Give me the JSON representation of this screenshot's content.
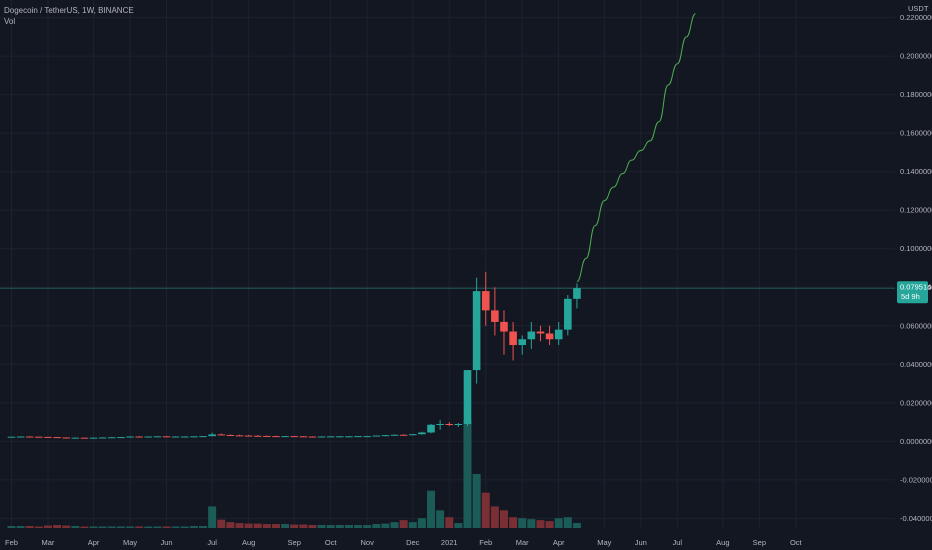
{
  "header": {
    "symbol_line": "Dogecoin / TetherUS, 1W, BINANCE",
    "volume_label": "Vol"
  },
  "price_axis": {
    "currency": "USDT",
    "current_price_label": "0.0795146",
    "countdown_label": "5d 9h"
  },
  "colors": {
    "background": "#131722",
    "up": "#26a69a",
    "down": "#ef5350",
    "projection": "#4caf50",
    "volume_up": "#1c5c58",
    "volume_down": "#7a2f35",
    "grid": "#1e222d",
    "price_line": "#26a69a"
  },
  "chart_data": {
    "type": "candlestick",
    "title": "",
    "grid": true,
    "ylim": [
      -0.045,
      0.225
    ],
    "yticks": [
      -0.04,
      -0.02,
      0.0,
      0.02,
      0.04,
      0.06,
      0.08,
      0.1,
      0.12,
      0.14,
      0.16,
      0.18,
      0.2,
      0.22
    ],
    "ytick_labels": [
      "-0.0400000",
      "-0.0200000",
      "0.0000000",
      "0.0200000",
      "0.0400000",
      "0.0600000",
      "0.0800000",
      "0.1000000",
      "0.1200000",
      "0.1400000",
      "0.1600000",
      "0.1800000",
      "0.2000000",
      "0.2200000"
    ],
    "xtick_labels": [
      "Feb",
      "Mar",
      "Apr",
      "May",
      "Jun",
      "Jul",
      "Aug",
      "Sep",
      "Oct",
      "Nov",
      "Dec",
      "2021",
      "Feb",
      "Mar",
      "Apr",
      "May",
      "Jun",
      "Jul",
      "Aug",
      "Sep",
      "Oct"
    ],
    "xtick_week_index": [
      0,
      4,
      9,
      13,
      17,
      22,
      26,
      31,
      35,
      39,
      44,
      48,
      52,
      56,
      60,
      65,
      69,
      73,
      78,
      82,
      86
    ],
    "current_price": 0.0795146,
    "candles": [
      [
        0.0024,
        0.0025,
        0.0023,
        0.0024
      ],
      [
        0.0024,
        0.0026,
        0.0023,
        0.0025
      ],
      [
        0.0025,
        0.0026,
        0.0024,
        0.0024
      ],
      [
        0.0024,
        0.0025,
        0.0022,
        0.0023
      ],
      [
        0.0023,
        0.0024,
        0.0021,
        0.0022
      ],
      [
        0.0022,
        0.0023,
        0.0019,
        0.002
      ],
      [
        0.002,
        0.0021,
        0.0016,
        0.0018
      ],
      [
        0.0018,
        0.002,
        0.0016,
        0.0019
      ],
      [
        0.0019,
        0.002,
        0.0017,
        0.0018
      ],
      [
        0.0018,
        0.002,
        0.0017,
        0.0019
      ],
      [
        0.0019,
        0.0021,
        0.0018,
        0.002
      ],
      [
        0.002,
        0.0022,
        0.0019,
        0.0021
      ],
      [
        0.0021,
        0.0023,
        0.002,
        0.0022
      ],
      [
        0.0022,
        0.0027,
        0.0021,
        0.0025
      ],
      [
        0.0025,
        0.0027,
        0.0023,
        0.0024
      ],
      [
        0.0024,
        0.0026,
        0.0023,
        0.0025
      ],
      [
        0.0025,
        0.0027,
        0.0024,
        0.0026
      ],
      [
        0.0026,
        0.0027,
        0.0024,
        0.0025
      ],
      [
        0.0025,
        0.0026,
        0.0024,
        0.0025
      ],
      [
        0.0025,
        0.0026,
        0.0024,
        0.0025
      ],
      [
        0.0025,
        0.0026,
        0.0024,
        0.0026
      ],
      [
        0.0026,
        0.0027,
        0.0025,
        0.0027
      ],
      [
        0.0027,
        0.0045,
        0.0026,
        0.0036
      ],
      [
        0.0036,
        0.004,
        0.003,
        0.0033
      ],
      [
        0.0033,
        0.0036,
        0.003,
        0.0031
      ],
      [
        0.0031,
        0.0034,
        0.0029,
        0.003
      ],
      [
        0.003,
        0.0033,
        0.0028,
        0.0029
      ],
      [
        0.0029,
        0.0032,
        0.0027,
        0.0028
      ],
      [
        0.0028,
        0.003,
        0.0026,
        0.0027
      ],
      [
        0.0027,
        0.0029,
        0.0025,
        0.0026
      ],
      [
        0.0026,
        0.0028,
        0.0025,
        0.0027
      ],
      [
        0.0027,
        0.0028,
        0.0025,
        0.0026
      ],
      [
        0.0026,
        0.0027,
        0.0024,
        0.0025
      ],
      [
        0.0025,
        0.0026,
        0.0023,
        0.0024
      ],
      [
        0.0024,
        0.0026,
        0.0023,
        0.0025
      ],
      [
        0.0025,
        0.0026,
        0.0024,
        0.0026
      ],
      [
        0.0026,
        0.0027,
        0.0025,
        0.0026
      ],
      [
        0.0026,
        0.0027,
        0.0025,
        0.0026
      ],
      [
        0.0026,
        0.0027,
        0.0025,
        0.0027
      ],
      [
        0.0027,
        0.0028,
        0.0026,
        0.0027
      ],
      [
        0.0027,
        0.003,
        0.0026,
        0.003
      ],
      [
        0.003,
        0.0033,
        0.0028,
        0.0032
      ],
      [
        0.0032,
        0.0036,
        0.003,
        0.0034
      ],
      [
        0.0034,
        0.0037,
        0.003,
        0.0032
      ],
      [
        0.0032,
        0.0038,
        0.0031,
        0.0037
      ],
      [
        0.0037,
        0.005,
        0.0035,
        0.0046
      ],
      [
        0.0046,
        0.009,
        0.0042,
        0.0086
      ],
      [
        0.0086,
        0.011,
        0.006,
        0.009
      ],
      [
        0.009,
        0.01,
        0.008,
        0.0085
      ],
      [
        0.0085,
        0.0095,
        0.0075,
        0.009
      ],
      [
        0.009,
        0.037,
        0.008,
        0.037
      ],
      [
        0.037,
        0.085,
        0.03,
        0.078
      ],
      [
        0.078,
        0.088,
        0.06,
        0.068
      ],
      [
        0.068,
        0.08,
        0.055,
        0.062
      ],
      [
        0.062,
        0.068,
        0.045,
        0.057
      ],
      [
        0.057,
        0.062,
        0.042,
        0.05
      ],
      [
        0.05,
        0.055,
        0.045,
        0.053
      ],
      [
        0.053,
        0.062,
        0.048,
        0.057
      ],
      [
        0.057,
        0.06,
        0.052,
        0.056
      ],
      [
        0.056,
        0.06,
        0.05,
        0.053
      ],
      [
        0.053,
        0.062,
        0.05,
        0.058
      ],
      [
        0.058,
        0.076,
        0.055,
        0.074
      ],
      [
        0.074,
        0.082,
        0.069,
        0.0795
      ]
    ],
    "volume": [
      4,
      4,
      4,
      3,
      5,
      6,
      5,
      4,
      3,
      3,
      3,
      3,
      3,
      3,
      3,
      3,
      3,
      3,
      3,
      3,
      4,
      4,
      44,
      17,
      12,
      10,
      9,
      9,
      8,
      8,
      8,
      7,
      7,
      6,
      6,
      6,
      6,
      6,
      6,
      6,
      8,
      9,
      12,
      16,
      12,
      20,
      76,
      36,
      22,
      10,
      220,
      110,
      72,
      44,
      36,
      22,
      20,
      18,
      16,
      14,
      20,
      22,
      10
    ],
    "projection": [
      [
        62,
        0.083
      ],
      [
        63,
        0.095
      ],
      [
        64,
        0.112
      ],
      [
        65,
        0.125
      ],
      [
        66,
        0.132
      ],
      [
        67,
        0.139
      ],
      [
        68,
        0.146
      ],
      [
        69,
        0.151
      ],
      [
        70,
        0.156
      ],
      [
        71,
        0.166
      ],
      [
        72,
        0.185
      ],
      [
        73,
        0.196
      ],
      [
        74,
        0.21
      ],
      [
        75,
        0.222
      ]
    ]
  }
}
